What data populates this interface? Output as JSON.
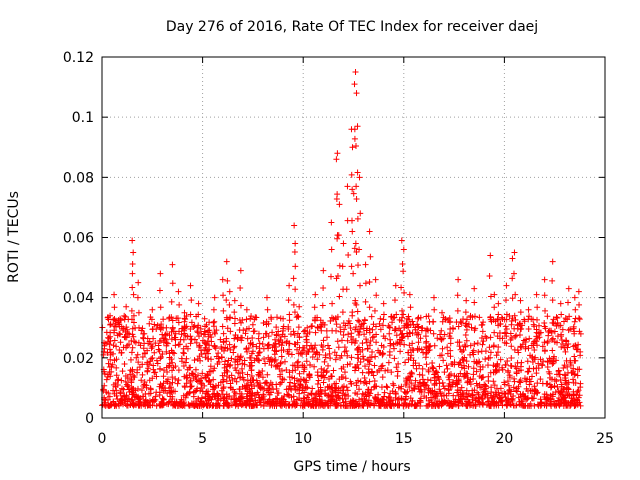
{
  "chart_data": {
    "type": "scatter",
    "title": "Day 276 of 2016, Rate Of TEC Index for receiver daej",
    "xlabel": "GPS time / hours",
    "ylabel": "ROTI / TECUs",
    "xlim": [
      0,
      25
    ],
    "ylim": [
      0,
      0.12
    ],
    "x_ticks": [
      0,
      5,
      10,
      15,
      20,
      25
    ],
    "x_tick_labels": [
      "0",
      "5",
      "10",
      "15",
      "20",
      "25"
    ],
    "y_ticks": [
      0,
      0.02,
      0.04,
      0.06,
      0.08,
      0.1,
      0.12
    ],
    "y_tick_labels": [
      "0",
      "0.02",
      "0.04",
      "0.06",
      "0.08",
      "0.1",
      "0.12"
    ],
    "grid": true,
    "marker": "plus",
    "series": [
      {
        "name": "ROTI",
        "color": "#ff0000",
        "x": [
          0.1,
          0.4,
          0.6,
          0.9,
          1.2,
          1.5,
          1.55,
          1.8,
          2.1,
          2.5,
          2.9,
          3.2,
          3.5,
          3.8,
          4.1,
          4.4,
          4.8,
          5.1,
          5.3,
          5.6,
          6.0,
          6.2,
          6.35,
          6.6,
          6.9,
          7.2,
          7.5,
          7.8,
          8.2,
          8.6,
          9.0,
          9.3,
          9.55,
          9.6,
          9.8,
          10.2,
          10.6,
          11.0,
          11.4,
          11.65,
          11.7,
          11.8,
          12.0,
          12.2,
          12.4,
          12.45,
          12.55,
          12.6,
          12.65,
          12.7,
          12.8,
          13.1,
          13.3,
          13.6,
          14.0,
          14.3,
          14.6,
          14.9,
          15.0,
          15.3,
          15.7,
          16.1,
          16.5,
          16.9,
          17.3,
          17.7,
          18.1,
          18.5,
          18.9,
          19.3,
          19.5,
          19.7,
          20.1,
          20.4,
          20.5,
          20.8,
          21.2,
          21.6,
          22.0,
          22.4,
          22.8,
          23.2,
          23.5,
          23.7
        ],
        "y": [
          0.025,
          0.034,
          0.041,
          0.033,
          0.037,
          0.059,
          0.055,
          0.045,
          0.028,
          0.036,
          0.048,
          0.03,
          0.051,
          0.042,
          0.035,
          0.044,
          0.038,
          0.033,
          0.027,
          0.04,
          0.046,
          0.052,
          0.042,
          0.039,
          0.049,
          0.036,
          0.031,
          0.028,
          0.04,
          0.026,
          0.033,
          0.044,
          0.064,
          0.058,
          0.037,
          0.03,
          0.041,
          0.049,
          0.065,
          0.086,
          0.088,
          0.071,
          0.058,
          0.077,
          0.096,
          0.09,
          0.111,
          0.115,
          0.108,
          0.097,
          0.08,
          0.051,
          0.062,
          0.046,
          0.038,
          0.03,
          0.044,
          0.059,
          0.056,
          0.041,
          0.033,
          0.029,
          0.04,
          0.035,
          0.032,
          0.046,
          0.039,
          0.043,
          0.031,
          0.054,
          0.041,
          0.038,
          0.044,
          0.053,
          0.055,
          0.039,
          0.036,
          0.041,
          0.046,
          0.052,
          0.038,
          0.043,
          0.04,
          0.042
        ]
      }
    ]
  }
}
